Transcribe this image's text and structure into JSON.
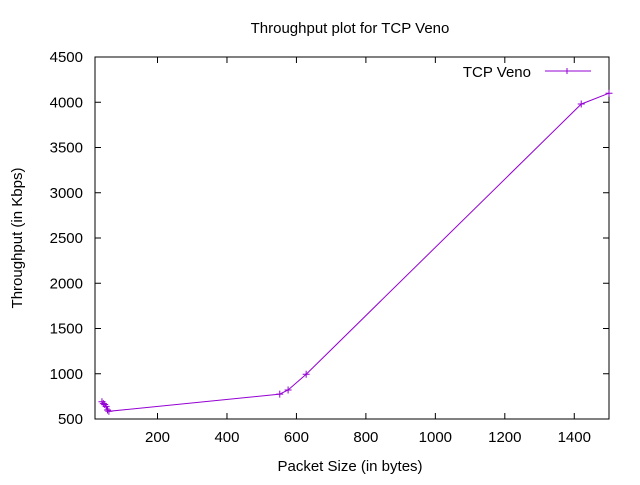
{
  "chart_data": {
    "type": "line",
    "title": "Throughput plot for TCP Veno",
    "xlabel": "Packet Size (in bytes)",
    "ylabel": "Throughput (in Kbps)",
    "xlim": [
      20,
      1500
    ],
    "ylim": [
      500,
      4500
    ],
    "xticks": [
      200,
      400,
      600,
      800,
      1000,
      1200,
      1400
    ],
    "yticks": [
      500,
      1000,
      1500,
      2000,
      2500,
      3000,
      3500,
      4000,
      4500
    ],
    "grid": false,
    "legend_position": "top-right",
    "series": [
      {
        "name": "TCP Veno",
        "color": "#9400d3",
        "marker": "plus",
        "points": [
          [
            40,
            690
          ],
          [
            44,
            670
          ],
          [
            48,
            660
          ],
          [
            52,
            640
          ],
          [
            56,
            600
          ],
          [
            60,
            585
          ],
          [
            552,
            775
          ],
          [
            576,
            820
          ],
          [
            628,
            995
          ],
          [
            1420,
            3980
          ],
          [
            1500,
            4100
          ]
        ]
      }
    ]
  }
}
